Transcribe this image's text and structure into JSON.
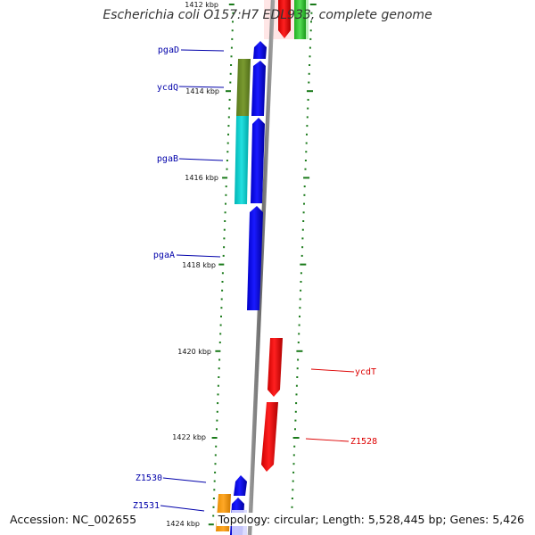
{
  "title": "Escherichia coli O157:H7 EDL933, complete genome",
  "accession": "Accession: NC_002655",
  "topology": "Topology: circular; Length: 5,528,445 bp; Genes: 5,426",
  "colors": {
    "forward_cds": "#0000ff",
    "reverse_cds": "#ff0000",
    "backbone": "#808080",
    "tick": "#1a7a1a",
    "forward_label": "#0000aa",
    "reverse_label": "#dd0000",
    "olive": "#6b8e23",
    "cyan": "#00cccc",
    "orange": "#ff9900",
    "green": "#33cc33",
    "lavender": "#ccccff"
  },
  "ticks": [
    {
      "label": "1412 kbp",
      "kbp": 1412
    },
    {
      "label": "1414 kbp",
      "kbp": 1414
    },
    {
      "label": "1416 kbp",
      "kbp": 1416
    },
    {
      "label": "1418 kbp",
      "kbp": 1418
    },
    {
      "label": "1420 kbp",
      "kbp": 1420
    },
    {
      "label": "1422 kbp",
      "kbp": 1422
    },
    {
      "label": "1424 kbp",
      "kbp": 1424
    }
  ],
  "genes": [
    {
      "name": "pgaD",
      "strand": "forward"
    },
    {
      "name": "ycdQ",
      "strand": "forward"
    },
    {
      "name": "pgaB",
      "strand": "forward"
    },
    {
      "name": "pgaA",
      "strand": "forward"
    },
    {
      "name": "ycdT",
      "strand": "reverse"
    },
    {
      "name": "Z1528",
      "strand": "reverse"
    },
    {
      "name": "Z1530",
      "strand": "forward"
    },
    {
      "name": "Z1531",
      "strand": "forward"
    }
  ]
}
